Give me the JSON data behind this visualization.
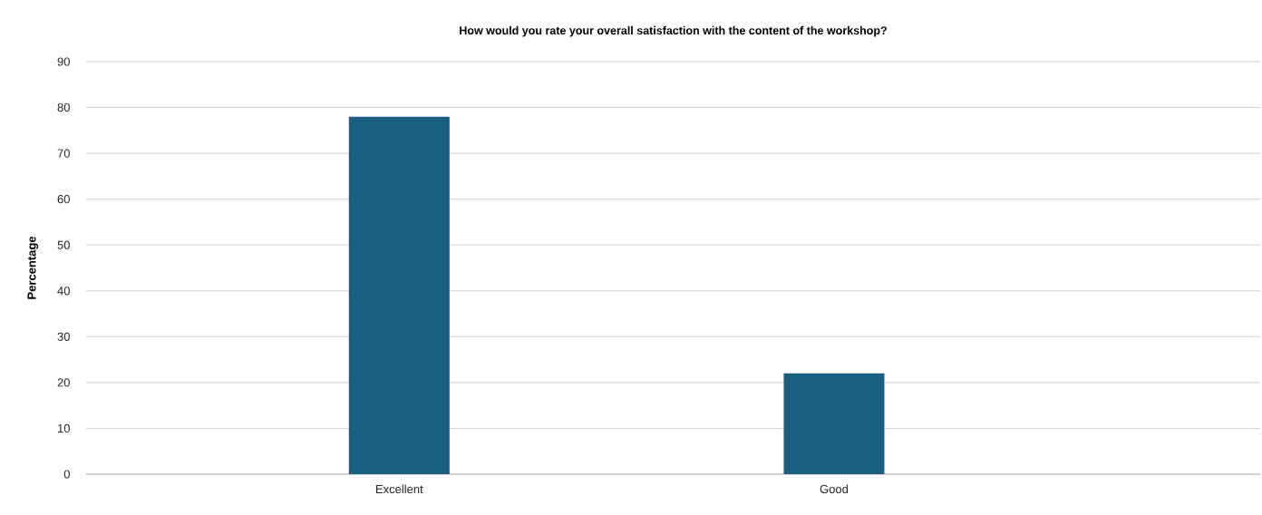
{
  "chart_data": {
    "type": "bar",
    "title": "How would you rate your overall satisfaction with the content of the workshop?",
    "ylabel": "Percentage",
    "categories": [
      "Excellent",
      "Good"
    ],
    "values": [
      78,
      22
    ],
    "color": "#1a5f80",
    "ylim": [
      0,
      90
    ],
    "yticks": [
      0,
      10,
      20,
      30,
      40,
      50,
      60,
      70,
      80,
      90
    ],
    "grid": "y"
  }
}
